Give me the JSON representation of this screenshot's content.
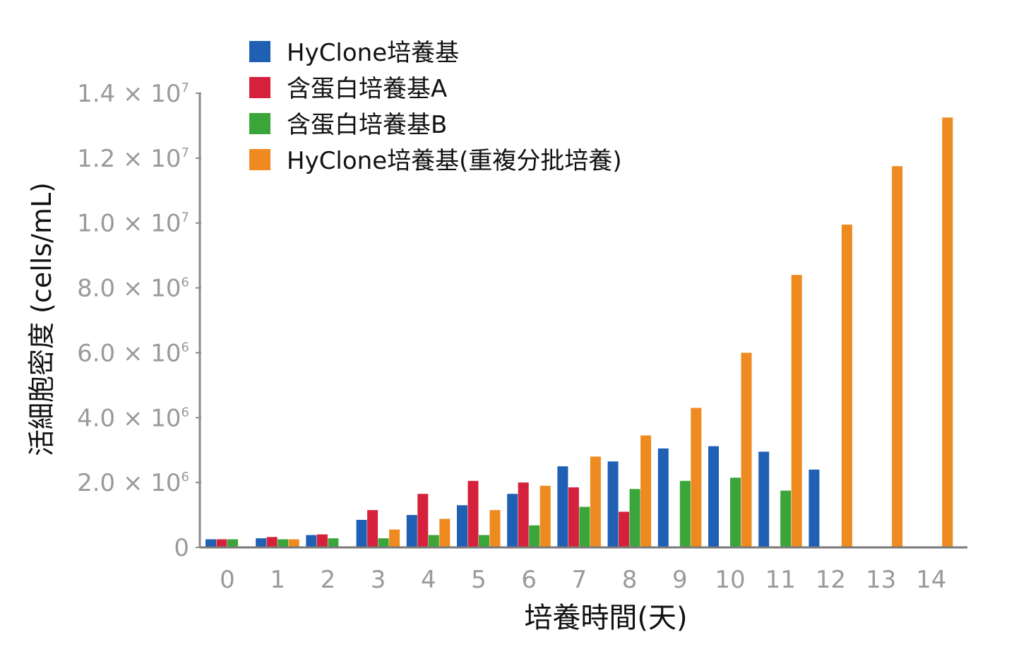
{
  "chart_data": {
    "type": "bar",
    "xlabel": "培養時間(天)",
    "ylabel": "活細胞密度 (cells/mL)",
    "categories": [
      "0",
      "1",
      "2",
      "3",
      "4",
      "5",
      "6",
      "7",
      "8",
      "9",
      "10",
      "11",
      "12",
      "13",
      "14"
    ],
    "ylim": [
      0,
      14000000
    ],
    "y_ticks": [
      0,
      2000000,
      4000000,
      6000000,
      8000000,
      10000000,
      12000000,
      14000000
    ],
    "y_tick_labels": [
      {
        "base": "0",
        "exp": ""
      },
      {
        "base": "2.0 × 10",
        "exp": "6"
      },
      {
        "base": "4.0 × 10",
        "exp": "6"
      },
      {
        "base": "6.0 × 10",
        "exp": "6"
      },
      {
        "base": "8.0 × 10",
        "exp": "6"
      },
      {
        "base": "1.0 × 10",
        "exp": "7"
      },
      {
        "base": "1.2 × 10",
        "exp": "7"
      },
      {
        "base": "1.4 × 10",
        "exp": "7"
      }
    ],
    "legend_position": "top-left",
    "grid": false,
    "series": [
      {
        "name": "HyClone培養基",
        "color": "#1f5fb4",
        "values": [
          250000,
          280000,
          380000,
          850000,
          1000000,
          1300000,
          1650000,
          2500000,
          2650000,
          3050000,
          3120000,
          2950000,
          2400000,
          null,
          null
        ]
      },
      {
        "name": "含蛋白培養基A",
        "color": "#d5213b",
        "values": [
          250000,
          320000,
          400000,
          1150000,
          1650000,
          2050000,
          2000000,
          1850000,
          1100000,
          null,
          null,
          null,
          null,
          null,
          null
        ]
      },
      {
        "name": "含蛋白培養基B",
        "color": "#3aa63a",
        "values": [
          250000,
          250000,
          280000,
          280000,
          380000,
          380000,
          680000,
          1250000,
          1800000,
          2050000,
          2150000,
          1750000,
          null,
          null,
          null
        ]
      },
      {
        "name": "HyClone培養基(重複分批培養)",
        "color": "#ee8a1f",
        "values": [
          null,
          250000,
          null,
          550000,
          880000,
          1150000,
          1900000,
          2800000,
          3450000,
          4300000,
          6000000,
          8400000,
          9950000,
          11750000,
          13250000
        ]
      }
    ]
  }
}
